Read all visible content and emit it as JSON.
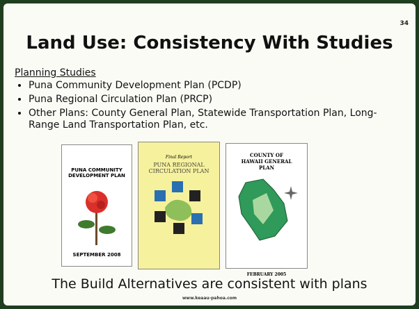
{
  "slide_number": "34",
  "title": "Land Use: Consistency With Studies",
  "section_heading": "Planning Studies",
  "bullets": [
    "Puna Community Development Plan (PCDP)",
    "Puna Regional Circulation Plan (PRCP)",
    "Other Plans: County General Plan, Statewide Transportation Plan, Long-Range Land Transportation Plan, etc."
  ],
  "covers": [
    {
      "title": "PUNA COMMUNITY DEVELOPMENT PLAN",
      "date": "SEPTEMBER 2008"
    },
    {
      "subtitle": "Final Report",
      "title": "PUNA REGIONAL CIRCULATION PLAN"
    },
    {
      "title": "COUNTY OF HAWAII GENERAL PLAN",
      "date": "FEBRUARY 2005"
    }
  ],
  "conclusion": "The Build Alternatives are consistent with plans",
  "footer": "www.keaau-pahoa.com"
}
